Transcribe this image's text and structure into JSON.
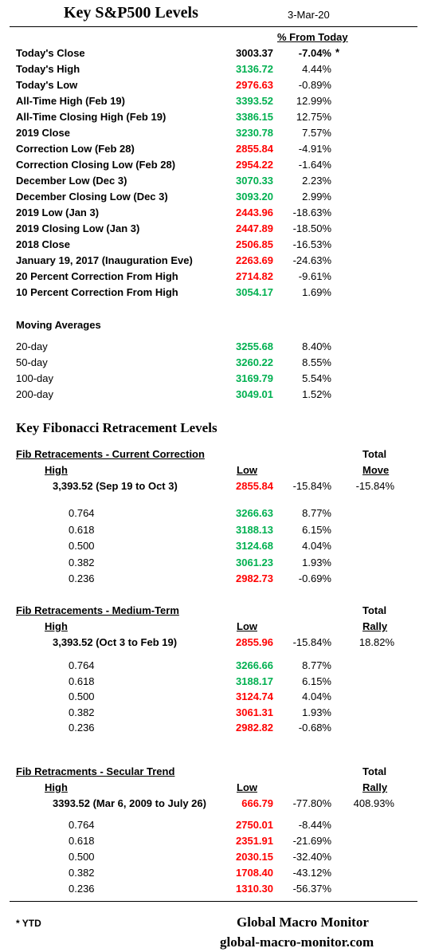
{
  "header": {
    "title": "Key S&P500 Levels",
    "date": "3-Mar-20",
    "pct_header": "% From Today"
  },
  "levels": [
    {
      "label": "Today's Close",
      "value": "3003.37",
      "pct": "-7.04%",
      "note": "*",
      "color": "black",
      "pct_bold": true
    },
    {
      "label": "Today's High",
      "value": "3136.72",
      "pct": "4.44%",
      "color": "green"
    },
    {
      "label": "Today's  Low",
      "value": "2976.63",
      "pct": "-0.89%",
      "color": "red"
    },
    {
      "label": "All-Time High (Feb 19)",
      "value": "3393.52",
      "pct": "12.99%",
      "color": "green"
    },
    {
      "label": "All-Time Closing High (Feb 19)",
      "value": "3386.15",
      "pct": "12.75%",
      "color": "green"
    },
    {
      "label": "2019 Close",
      "value": "3230.78",
      "pct": "7.57%",
      "color": "green"
    },
    {
      "label": "Correction Low (Feb 28)",
      "value": "2855.84",
      "pct": "-4.91%",
      "color": "red"
    },
    {
      "label": "Correction Closing Low (Feb 28)",
      "value": "2954.22",
      "pct": "-1.64%",
      "color": "red"
    },
    {
      "label": "December Low (Dec 3)",
      "value": "3070.33",
      "pct": "2.23%",
      "color": "green"
    },
    {
      "label": "December Closing Low  (Dec 3)",
      "value": "3093.20",
      "pct": "2.99%",
      "color": "green"
    },
    {
      "label": "2019 Low  (Jan 3)",
      "value": "2443.96",
      "pct": "-18.63%",
      "color": "red"
    },
    {
      "label": "2019 Closing Low (Jan 3)",
      "value": "2447.89",
      "pct": "-18.50%",
      "color": "red"
    },
    {
      "label": "2018 Close",
      "value": "2506.85",
      "pct": "-16.53%",
      "color": "red"
    },
    {
      "label": "January 19, 2017 (Inauguration Eve)",
      "value": "2263.69",
      "pct": "-24.63%",
      "color": "red"
    },
    {
      "label": "20 Percent Correction From High",
      "value": "2714.82",
      "pct": "-9.61%",
      "color": "red"
    },
    {
      "label": "10 Percent Correction From High",
      "value": "3054.17",
      "pct": "1.69%",
      "color": "green"
    }
  ],
  "moving_averages": {
    "title": "Moving Averages",
    "rows": [
      {
        "label": "20-day",
        "value": "3255.68",
        "pct": "8.40%",
        "color": "green"
      },
      {
        "label": "50-day",
        "value": "3260.22",
        "pct": "8.55%",
        "color": "green"
      },
      {
        "label": "100-day",
        "value": "3169.79",
        "pct": "5.54%",
        "color": "green"
      },
      {
        "label": "200-day",
        "value": "3049.01",
        "pct": "1.52%",
        "color": "green"
      }
    ]
  },
  "fib_title": "Key Fibonacci Retracement Levels",
  "fib_sections": [
    {
      "title": "Fib Retracements - Current Correction",
      "col_high": "High",
      "col_low": "Low",
      "col_total_1": "Total",
      "col_total_2": "Move",
      "range": "3,393.52  (Sep 19 to Oct 3)",
      "low": "2855.84",
      "low_color": "red",
      "low_pct": "-15.84%",
      "total": "-15.84%",
      "rows": [
        {
          "level": "0.764",
          "value": "3266.63",
          "pct": "8.77%",
          "color": "green"
        },
        {
          "level": "0.618",
          "value": "3188.13",
          "pct": "6.15%",
          "color": "green"
        },
        {
          "level": "0.500",
          "value": "3124.68",
          "pct": "4.04%",
          "color": "green"
        },
        {
          "level": "0.382",
          "value": "3061.23",
          "pct": "1.93%",
          "color": "green"
        },
        {
          "level": "0.236",
          "value": "2982.73",
          "pct": "-0.69%",
          "color": "red"
        }
      ]
    },
    {
      "title": "Fib Retracements - Medium-Term",
      "col_high": "High",
      "col_low": "Low",
      "col_total_1": "Total",
      "col_total_2": "Rally",
      "range": "3,393.52  (Oct 3 to Feb 19)",
      "low": "2855.96",
      "low_color": "red",
      "low_pct": "-15.84%",
      "total": "18.82%",
      "rows": [
        {
          "level": "0.764",
          "value": "3266.66",
          "pct": "8.77%",
          "color": "green"
        },
        {
          "level": "0.618",
          "value": "3188.17",
          "pct": "6.15%",
          "color": "green"
        },
        {
          "level": "0.500",
          "value": "3124.74",
          "pct": "4.04%",
          "color": "red"
        },
        {
          "level": "0.382",
          "value": "3061.31",
          "pct": "1.93%",
          "color": "red"
        },
        {
          "level": "0.236",
          "value": "2982.82",
          "pct": "-0.68%",
          "color": "red"
        }
      ]
    },
    {
      "title": "Fib Retracments - Secular Trend",
      "col_high": "High",
      "col_low": "Low",
      "col_total_1": "Total",
      "col_total_2": "Rally",
      "range": "3393.52  (Mar 6, 2009  to July 26)",
      "low": "666.79",
      "low_color": "red",
      "low_pct": "-77.80%",
      "total": "408.93%",
      "rows": [
        {
          "level": "0.764",
          "value": "2750.01",
          "pct": "-8.44%",
          "color": "red"
        },
        {
          "level": "0.618",
          "value": "2351.91",
          "pct": "-21.69%",
          "color": "red"
        },
        {
          "level": "0.500",
          "value": "2030.15",
          "pct": "-32.40%",
          "color": "red"
        },
        {
          "level": "0.382",
          "value": "1708.40",
          "pct": "-43.12%",
          "color": "red"
        },
        {
          "level": "0.236",
          "value": "1310.30",
          "pct": "-56.37%",
          "color": "red"
        }
      ]
    }
  ],
  "footer": {
    "note": "* YTD",
    "brand": "Global Macro Monitor",
    "url": "global-macro-monitor.com"
  },
  "colors": {
    "green": "#00b050",
    "red": "#ff0000"
  }
}
